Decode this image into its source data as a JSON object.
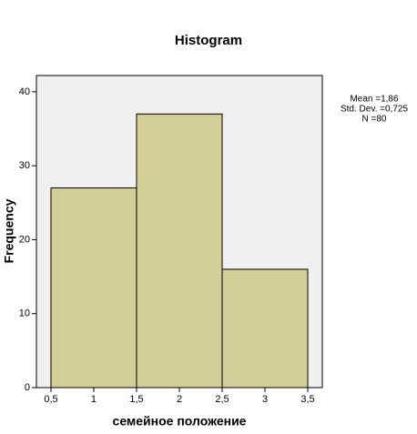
{
  "chart_data": {
    "type": "histogram",
    "title": "Histogram",
    "x_label": "семейное положение",
    "y_label": "Frequency",
    "bins": [
      0.5,
      1.5,
      2.5,
      3.5
    ],
    "values": [
      27,
      37,
      16
    ],
    "color": "#d3ce97",
    "xlim": [
      0.33,
      3.67
    ],
    "xticks": [
      {
        "value": 0.5,
        "label": "0,5"
      },
      1,
      {
        "value": 1.5,
        "label": "1,5"
      },
      2,
      {
        "value": 2.5,
        "label": "2,5"
      },
      3,
      {
        "value": 3.5,
        "label": "3,5"
      }
    ],
    "ylim": [
      0,
      42.2
    ],
    "yticks": [
      0,
      10,
      20,
      30,
      40
    ],
    "stats": [
      "Mean =1,86",
      "Std. Dev. =0,725",
      "N =80"
    ]
  }
}
